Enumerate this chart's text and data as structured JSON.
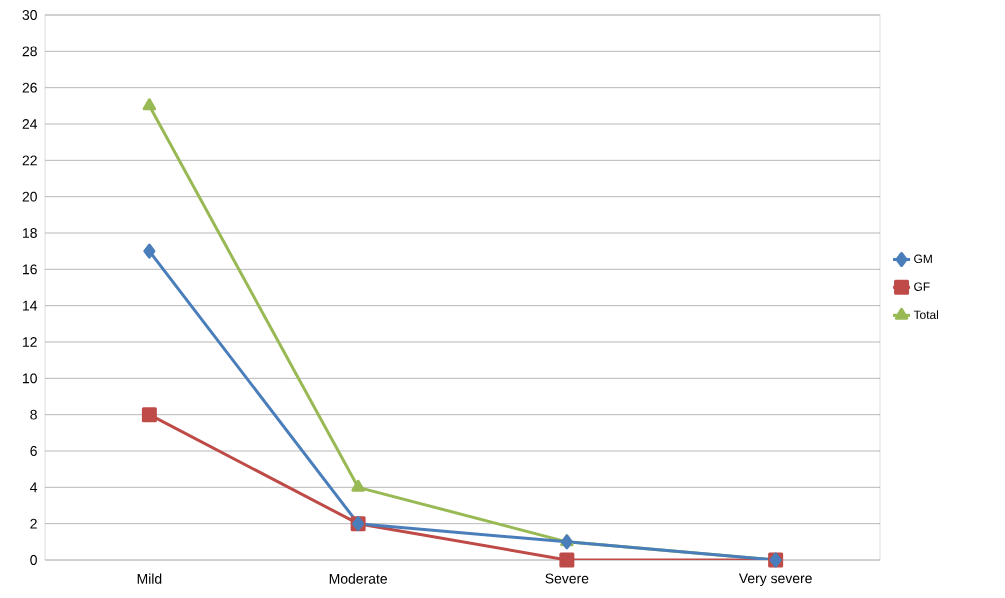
{
  "chart_data": {
    "type": "line",
    "categories": [
      "Mild",
      "Moderate",
      "Severe",
      "Very severe"
    ],
    "series": [
      {
        "name": "GM",
        "color": "#4a7ebb",
        "marker": "diamond",
        "values": [
          17,
          2,
          1,
          0
        ]
      },
      {
        "name": "GF",
        "color": "#be4b48",
        "marker": "square",
        "values": [
          8,
          2,
          0,
          0
        ]
      },
      {
        "name": "Total",
        "color": "#98b954",
        "marker": "triangle",
        "values": [
          25,
          4,
          1,
          0
        ]
      }
    ],
    "ylim": [
      0,
      30
    ],
    "yticks": [
      0,
      2,
      4,
      6,
      8,
      10,
      12,
      14,
      16,
      18,
      20,
      22,
      24,
      26,
      28,
      30
    ],
    "grid": "y",
    "legend": "right",
    "line_style": "solid"
  }
}
